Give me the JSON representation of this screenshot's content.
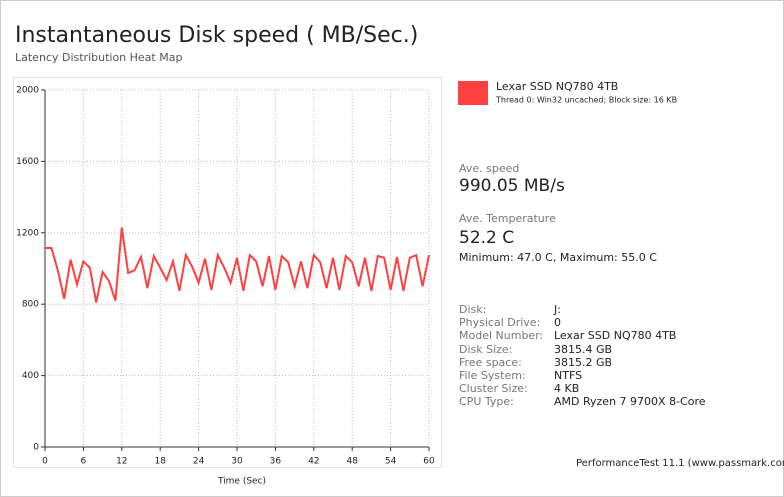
{
  "chart_data": {
    "type": "line",
    "title": "Instantaneous Disk speed ( MB/Sec.)",
    "subtitle": "Latency Distribution Heat Map",
    "x_label": "Time (Sec)",
    "x": [
      0,
      1,
      2,
      3,
      4,
      5,
      6,
      7,
      8,
      9,
      10,
      11,
      12,
      13,
      14,
      15,
      16,
      17,
      18,
      19,
      20,
      21,
      22,
      23,
      24,
      25,
      26,
      27,
      28,
      29,
      30,
      31,
      32,
      33,
      34,
      35,
      36,
      37,
      38,
      39,
      40,
      41,
      42,
      43,
      44,
      45,
      46,
      47,
      48,
      49,
      50,
      51,
      52,
      53,
      54,
      55,
      56,
      57,
      58,
      59,
      60
    ],
    "series": [
      {
        "name": "Lexar SSD NQ780 4TB",
        "color": "#ff4040",
        "values": [
          1115,
          1115,
          990,
          830,
          1050,
          910,
          1040,
          1005,
          810,
          980,
          930,
          820,
          1230,
          975,
          990,
          1065,
          890,
          1070,
          1005,
          935,
          1040,
          875,
          1075,
          1010,
          920,
          1055,
          880,
          1075,
          1005,
          920,
          1060,
          875,
          1075,
          1040,
          900,
          1070,
          880,
          1070,
          1035,
          900,
          1040,
          890,
          1075,
          1035,
          890,
          1060,
          880,
          1070,
          1035,
          900,
          1060,
          875,
          1070,
          1060,
          880,
          1065,
          875,
          1060,
          1075,
          900,
          1075
        ]
      }
    ],
    "legend_subtitle": "Thread 0: Win32 uncached; Block size: 16 KB",
    "xlim": [
      0,
      60
    ],
    "xticks": [
      0,
      6,
      12,
      18,
      24,
      30,
      36,
      42,
      48,
      54,
      60
    ],
    "ylim": [
      0,
      2000
    ],
    "yticks": [
      0,
      400,
      800,
      1200,
      1600,
      2000
    ],
    "grid": true
  },
  "panel": {
    "speed_label": "Ave. speed",
    "speed": "990.05 MB/s",
    "temp_label": "Ave. Temperature",
    "temp": "52.2 C",
    "temp_range": "Minimum: 47.0 C, Maximum: 55.0 C",
    "info": [
      [
        "Disk:",
        "J:"
      ],
      [
        "Physical Drive:",
        "0"
      ],
      [
        "Model Number:",
        "Lexar SSD NQ780 4TB"
      ],
      [
        "Disk Size:",
        "3815.4 GB"
      ],
      [
        "Free space:",
        "3815.2 GB"
      ],
      [
        "File System:",
        "NTFS"
      ],
      [
        "Cluster Size:",
        "4 KB"
      ],
      [
        "CPU Type:",
        "AMD Ryzen 7 9700X 8-Core"
      ]
    ],
    "footer": "PerformanceTest 11.1 (www.passmark.com)"
  }
}
